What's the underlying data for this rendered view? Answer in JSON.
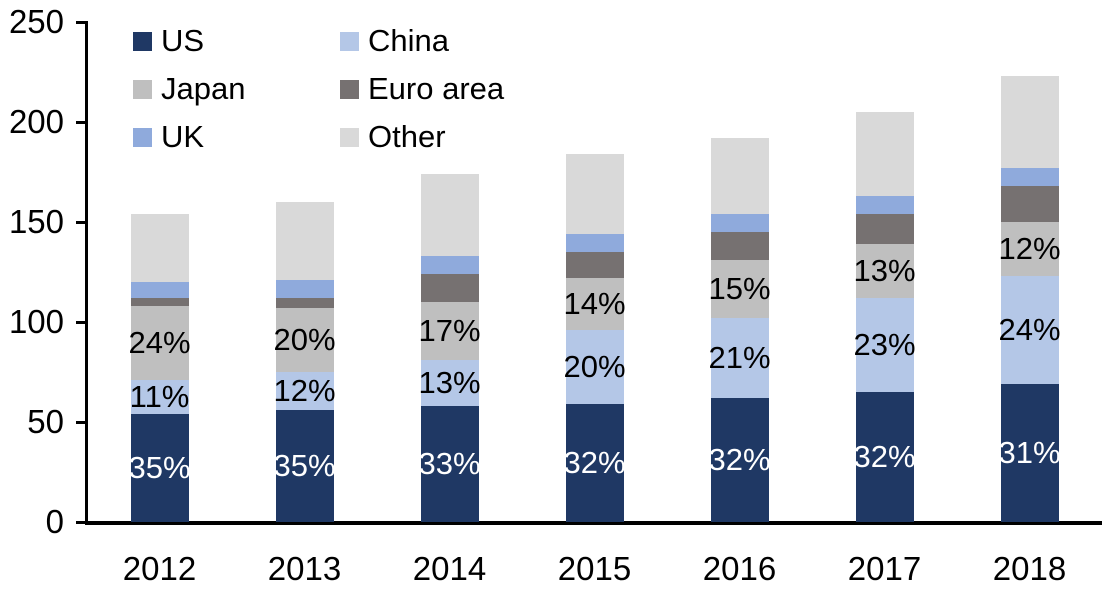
{
  "chart_data": {
    "type": "bar",
    "variant": "stacked-column",
    "title": "",
    "categories": [
      "2012",
      "2013",
      "2014",
      "2015",
      "2016",
      "2017",
      "2018"
    ],
    "series": [
      {
        "name": "US",
        "color": "#1f3864",
        "values": [
          54,
          56,
          58,
          59,
          62,
          65,
          69
        ],
        "segment_labels": [
          "35%",
          "35%",
          "33%",
          "32%",
          "32%",
          "32%",
          "31%"
        ],
        "label_color": "#ffffff"
      },
      {
        "name": "China",
        "color": "#b4c7e7",
        "values": [
          17,
          19,
          23,
          37,
          40,
          47,
          54
        ],
        "segment_labels": [
          "11%",
          "12%",
          "13%",
          "20%",
          "21%",
          "23%",
          "24%"
        ],
        "label_color": "#000000"
      },
      {
        "name": "Japan",
        "color": "#bfbfbf",
        "values": [
          37,
          32,
          29,
          26,
          29,
          27,
          27
        ],
        "segment_labels": [
          "24%",
          "20%",
          "17%",
          "14%",
          "15%",
          "13%",
          "12%"
        ],
        "label_color": "#000000"
      },
      {
        "name": "Euro area",
        "color": "#767171",
        "values": [
          4,
          5,
          14,
          13,
          14,
          15,
          18
        ],
        "segment_labels": [
          "",
          "",
          "",
          "",
          "",
          "",
          ""
        ],
        "label_color": "#000000"
      },
      {
        "name": "UK",
        "color": "#8faadc",
        "values": [
          8,
          9,
          9,
          9,
          9,
          9,
          9
        ],
        "segment_labels": [
          "",
          "",
          "",
          "",
          "",
          "",
          ""
        ],
        "label_color": "#000000"
      },
      {
        "name": "Other",
        "color": "#d9d9d9",
        "values": [
          34,
          39,
          41,
          40,
          38,
          42,
          46
        ],
        "segment_labels": [
          "",
          "",
          "",
          "",
          "",
          "",
          ""
        ],
        "label_color": "#000000"
      }
    ],
    "totals": [
      154,
      160,
      174,
      184,
      192,
      205,
      223
    ],
    "y_axis": {
      "ticks": [
        0,
        50,
        100,
        150,
        200,
        250
      ],
      "min": 0,
      "max": 250
    },
    "x_axis": {
      "labels": [
        "2012",
        "2013",
        "2014",
        "2015",
        "2016",
        "2017",
        "2018"
      ]
    },
    "legend": {
      "position": "top-left",
      "row_order": [
        [
          "US",
          "China"
        ],
        [
          "Japan",
          "Euro area"
        ],
        [
          "UK",
          "Other"
        ]
      ]
    },
    "grid": "off",
    "axis_color": "#000000",
    "background": "#ffffff"
  }
}
